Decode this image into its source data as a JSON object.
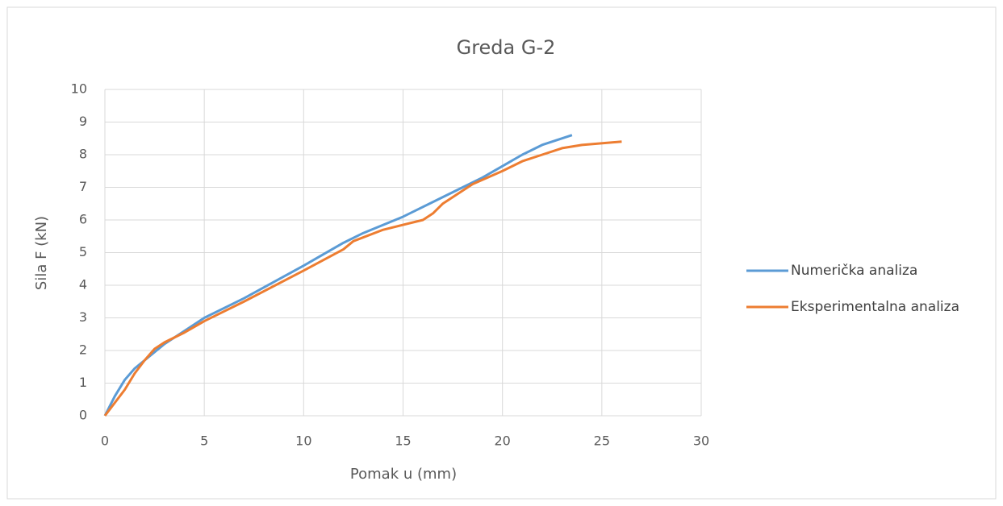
{
  "chart_data": {
    "type": "line",
    "title": "Greda G-2",
    "x_label": "Pomak u (mm)",
    "y_label": "Sila F (kN)",
    "xlim": [
      0,
      30
    ],
    "xticks": [
      0,
      5,
      10,
      15,
      20,
      25,
      30
    ],
    "ylim": [
      0,
      10
    ],
    "yticks": [
      0,
      1,
      2,
      3,
      4,
      5,
      6,
      7,
      8,
      9,
      10
    ],
    "grid": true,
    "legend": "right",
    "series": [
      {
        "name": "Numerička analiza",
        "color": "#5b9bd5",
        "x": [
          0,
          0.5,
          1,
          1.5,
          2,
          3,
          4,
          5,
          7,
          10,
          12,
          13,
          15,
          17,
          19,
          20,
          21,
          22,
          23.5
        ],
        "values": [
          0,
          0.6,
          1.1,
          1.45,
          1.7,
          2.2,
          2.6,
          3.0,
          3.6,
          4.6,
          5.3,
          5.6,
          6.1,
          6.7,
          7.3,
          7.65,
          8.0,
          8.3,
          8.6
        ]
      },
      {
        "name": "Eksperimentalna analiza",
        "color": "#ed7d31",
        "x": [
          0,
          1,
          1.5,
          2,
          2.5,
          3,
          4,
          5,
          7,
          10,
          12,
          12.5,
          14,
          16,
          16.5,
          17,
          18.5,
          20,
          21,
          22,
          23,
          24,
          26
        ],
        "values": [
          0,
          0.8,
          1.3,
          1.7,
          2.05,
          2.25,
          2.55,
          2.9,
          3.5,
          4.45,
          5.1,
          5.35,
          5.7,
          6.0,
          6.2,
          6.5,
          7.1,
          7.5,
          7.8,
          8.0,
          8.2,
          8.3,
          8.4
        ]
      }
    ]
  }
}
